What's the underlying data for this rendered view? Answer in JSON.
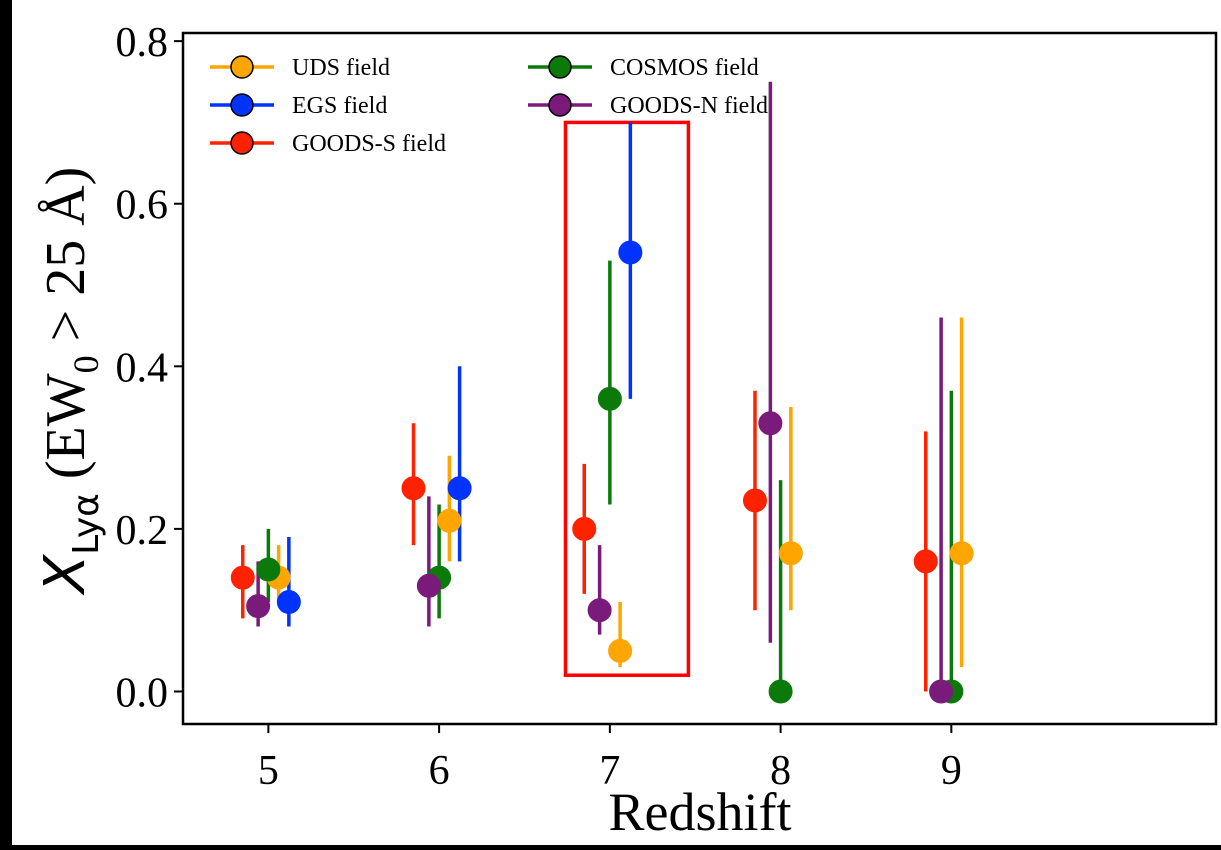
{
  "chart_data": {
    "type": "scatter",
    "xlabel": "Redshift",
    "ylabel": {
      "symbol": "X",
      "subscript": "Lyα",
      "rest": "(EW",
      "rest_sub": "0",
      "rest_tail": " > 25 Å)"
    },
    "xlim": [
      4.5,
      10.55
    ],
    "ylim": [
      -0.04,
      0.81
    ],
    "xticks": [
      5,
      6,
      7,
      8,
      9
    ],
    "xtick_labels": [
      "5",
      "6",
      "7",
      "8",
      "9"
    ],
    "yticks": [
      0.0,
      0.2,
      0.4,
      0.6,
      0.8
    ],
    "ytick_labels": [
      "0.0",
      "0.2",
      "0.4",
      "0.6",
      "0.8"
    ],
    "grid": false,
    "legend_position": "top-left",
    "legend_columns": 2,
    "series": [
      {
        "name": "UDS field",
        "color": "#FFA500",
        "points": [
          {
            "x": 5.06,
            "y": 0.14,
            "lo": 0.11,
            "hi": 0.18
          },
          {
            "x": 6.06,
            "y": 0.21,
            "lo": 0.16,
            "hi": 0.29
          },
          {
            "x": 7.06,
            "y": 0.05,
            "lo": 0.03,
            "hi": 0.11
          },
          {
            "x": 8.06,
            "y": 0.17,
            "lo": 0.1,
            "hi": 0.35
          },
          {
            "x": 9.06,
            "y": 0.17,
            "lo": 0.03,
            "hi": 0.46
          }
        ]
      },
      {
        "name": "EGS field",
        "color": "#0033FF",
        "points": [
          {
            "x": 5.12,
            "y": 0.11,
            "lo": 0.08,
            "hi": 0.19
          },
          {
            "x": 6.12,
            "y": 0.25,
            "lo": 0.16,
            "hi": 0.4
          },
          {
            "x": 7.12,
            "y": 0.54,
            "lo": 0.36,
            "hi": 0.7
          }
        ]
      },
      {
        "name": "GOODS-S field",
        "color": "#FF2200",
        "points": [
          {
            "x": 4.85,
            "y": 0.14,
            "lo": 0.09,
            "hi": 0.18
          },
          {
            "x": 5.85,
            "y": 0.25,
            "lo": 0.18,
            "hi": 0.33
          },
          {
            "x": 6.85,
            "y": 0.2,
            "lo": 0.12,
            "hi": 0.28
          },
          {
            "x": 7.85,
            "y": 0.235,
            "lo": 0.1,
            "hi": 0.37
          },
          {
            "x": 8.85,
            "y": 0.16,
            "lo": 0.0,
            "hi": 0.32
          }
        ]
      },
      {
        "name": "COSMOS field",
        "color": "#0B7A0B",
        "points": [
          {
            "x": 5.0,
            "y": 0.15,
            "lo": 0.11,
            "hi": 0.2
          },
          {
            "x": 6.0,
            "y": 0.14,
            "lo": 0.09,
            "hi": 0.23
          },
          {
            "x": 7.0,
            "y": 0.36,
            "lo": 0.23,
            "hi": 0.53
          },
          {
            "x": 8.0,
            "y": 0.0,
            "lo": 0.0,
            "hi": 0.26
          },
          {
            "x": 9.0,
            "y": 0.0,
            "lo": 0.0,
            "hi": 0.37
          }
        ]
      },
      {
        "name": "GOODS-N field",
        "color": "#7A1A7A",
        "points": [
          {
            "x": 4.94,
            "y": 0.105,
            "lo": 0.08,
            "hi": 0.16
          },
          {
            "x": 5.94,
            "y": 0.13,
            "lo": 0.08,
            "hi": 0.24
          },
          {
            "x": 6.94,
            "y": 0.1,
            "lo": 0.07,
            "hi": 0.18
          },
          {
            "x": 7.94,
            "y": 0.33,
            "lo": 0.06,
            "hi": 0.75
          },
          {
            "x": 8.94,
            "y": 0.0,
            "lo": 0.0,
            "hi": 0.46
          }
        ]
      }
    ],
    "highlight_box": {
      "x0": 6.74,
      "x1": 7.46,
      "y0": 0.02,
      "y1": 0.7,
      "color": "#FF0000"
    }
  }
}
